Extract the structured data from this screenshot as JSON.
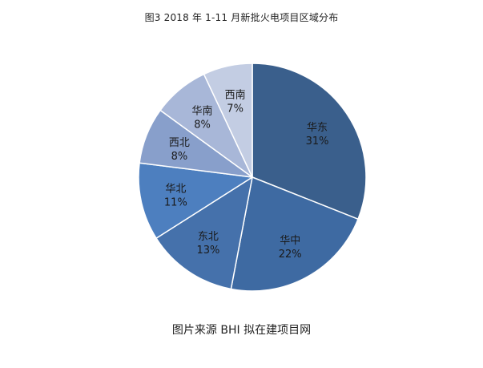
{
  "chart_data": {
    "type": "pie",
    "title": "图3 2018 年 1-11 月新批火电项目区域分布",
    "categories": [
      "华东",
      "华中",
      "东北",
      "华北",
      "西北",
      "华南",
      "西南"
    ],
    "values": [
      31,
      22,
      13,
      11,
      8,
      8,
      7
    ],
    "value_labels": [
      "31%",
      "22%",
      "13%",
      "11%",
      "8%",
      "8%",
      "7%"
    ],
    "colors": [
      "#3a5f8c",
      "#3e6aa2",
      "#4571ab",
      "#4d7fbf",
      "#889fcb",
      "#a8b7d8",
      "#c3cde3"
    ],
    "start_angle_deg": 0,
    "direction": "clockwise",
    "legend": "none"
  },
  "caption": "图片来源 BHI 拟在建项目网"
}
